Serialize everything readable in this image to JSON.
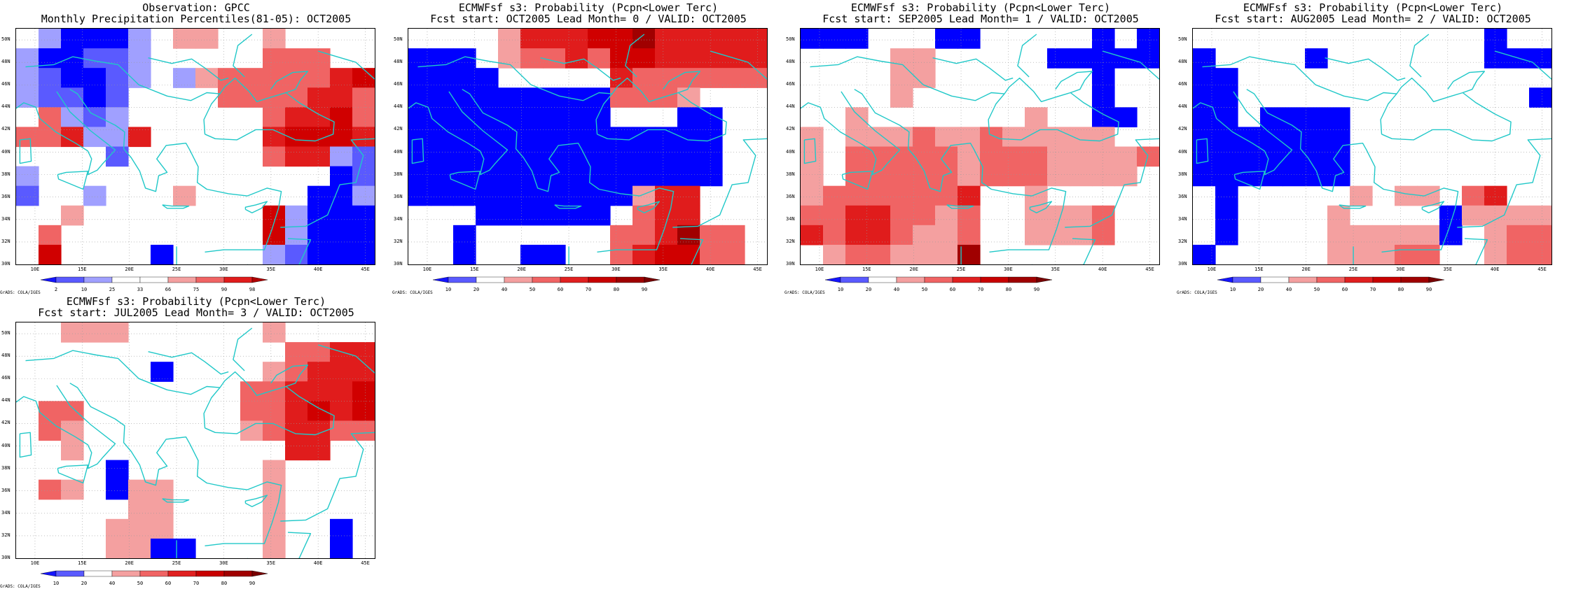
{
  "panels": [
    {
      "title1": "Observation: GPCC",
      "title2": "Monthly Precipitation Percentiles(81-05): OCT2005",
      "legend": [
        {
          "label": "2",
          "color": "#1414ff"
        },
        {
          "label": "10",
          "color": "#5a5aff"
        },
        {
          "label": "25",
          "color": "#a0a0ff"
        },
        {
          "label": "33",
          "color": "#ffffff"
        },
        {
          "label": "66",
          "color": "#ffffff"
        },
        {
          "label": "75",
          "color": "#f4a0a0"
        },
        {
          "label": "90",
          "color": "#f06464"
        },
        {
          "label": "98",
          "color": "#e01c1c"
        }
      ],
      "cells": [
        "w b3 b1 b1 b1 b3 w r1 r1 w w r1 w w w w",
        "b3 b1 b1 b2 b2 b3 w w w w w r2 r2 r2 w w",
        "b3 b2 b1 b1 b2 b3 w b3 r1 r2 r2 r2 r2 r2 r3 r4",
        "b3 b2 b2 b1 b2 w w w w r2 r2 r2 r2 r3 r3 r2",
        "w r2 b3 b2 b3 w w w w w w r2 r3 r3 r4 r2",
        "r2 r2 r3 b3 b3 r3 w w w w w r3 r4 r4 r4 r3",
        "w w w w b2 w w w w w w r2 r3 r3 b3 b2",
        "b3 w w w w w w w w w w w w w b1 b2",
        "b2 w w b3 w w w r1 w w w w w b1 b1 b3",
        "w w r1 w w w w w w w w r4 b3 b1 b1 b1",
        "w r2 w w w w w w w w w r4 b3 b1 b1 b1",
        "w r4 w w w w b1 w w w w b3 b2 b1 b1 b1"
      ],
      "colorbar": {
        "labels": [
          "2",
          "10",
          "25",
          "33",
          "66",
          "75",
          "90",
          "98"
        ],
        "colors": [
          "#1414ff",
          "#5a5aff",
          "#a0a0ff",
          "#ffffff",
          "#ffffff",
          "#f4a0a0",
          "#f06464",
          "#e01c1c",
          "#b00000"
        ]
      },
      "xticks": [
        "10E",
        "15E",
        "20E",
        "25E",
        "30E",
        "35E",
        "40E",
        "45E"
      ],
      "yticks": [
        "50N",
        "48N",
        "46N",
        "44N",
        "42N",
        "40N",
        "38N",
        "36N",
        "34N",
        "32N",
        "30N"
      ],
      "credit": "GrADS: COLA/IGES"
    },
    {
      "title1": "ECMWFsf s3: Probability (Pcpn<Lower Terc)",
      "title2": "Fcst start: OCT2005  Lead Month= 0 / VALID: OCT2005",
      "cells": [
        "w w w w r1 r3 r3 r3 r4 r4 r5 r3 r3 r3 r3 r3",
        "b1 b1 b1 w r1 r2 r2 r3 r2 r4 r4 r3 r3 r3 r3 r3",
        "b1 b1 b1 b1 w w w w w r3 r2 r2 r2 r2 r2 r2",
        "b1 b1 b1 b1 b1 b1 b1 b1 b1 r2 r2 r2 r1 w w w",
        "b1 b1 b1 b1 b1 b1 b1 b1 b1 w w w b1 b1 w w",
        "b1 b1 b1 b1 b1 b1 b1 b1 b1 b1 b1 b1 b1 b1 w w",
        "b1 b1 b1 b1 b1 b1 b1 b1 b1 b1 b1 b1 b1 b1 w w",
        "b1 b1 b1 b1 b1 b1 b1 b1 b1 b1 b1 b1 b1 b1 w w",
        "b1 b1 b1 b1 b1 b1 b1 b1 b1 b1 r1 r3 r3 w w w",
        "w w w b1 b1 b1 b1 b1 b1 w r2 r3 r3 w w w",
        "w w b1 w w w w w w r2 r2 r3 r5 r2 r2 w",
        "w w b1 w w b1 b1 w w r2 r3 r4 r4 r2 r2 w"
      ],
      "colorbar": {
        "labels": [
          "10",
          "20",
          "40",
          "50",
          "60",
          "70",
          "80",
          "90"
        ],
        "colors": [
          "#1414ff",
          "#5a5aff",
          "#ffffff",
          "#f4a0a0",
          "#f06464",
          "#e02020",
          "#c80000",
          "#a00000",
          "#780000"
        ]
      },
      "xticks": [
        "10E",
        "15E",
        "20E",
        "25E",
        "30E",
        "35E",
        "40E",
        "45E"
      ],
      "yticks": [
        "50N",
        "48N",
        "46N",
        "44N",
        "42N",
        "40N",
        "38N",
        "36N",
        "34N",
        "32N",
        "30N"
      ],
      "credit": "GrADS: COLA/IGES"
    },
    {
      "title1": "ECMWFsf s3: Probability (Pcpn<Lower Terc)",
      "title2": "Fcst start: SEP2005  Lead Month= 1 / VALID: OCT2005",
      "cells": [
        "b1 b1 b1 w w w b1 b1 w w w w w b1 w b1",
        "w w w w r1 r1 w w w w w b1 b1 b1 b1 b1",
        "w w w w r1 r1 w w w w w w w b1 w w",
        "w w w w r1 w w w w w w w w b1 w w",
        "w w r1 w w w w w w w r1 w w b1 b1 w",
        "r1 w r1 r1 r1 r2 r1 r1 r2 r1 r1 r1 r1 r1 w w",
        "r1 w r2 r2 r2 r2 r2 r1 r2 r2 r2 r1 r1 r1 r1 r2",
        "r1 w r2 r2 r2 r2 r2 r1 r2 r2 r2 r1 r1 r1 r1 w",
        "r1 r2 r2 r2 r2 r2 r2 r3 w w r1 w w w w w",
        "r2 r2 r3 r3 r2 r2 r1 r2 w w r1 r1 r1 r2 w w",
        "r3 r2 r3 r3 r2 r1 r1 r2 w w r1 r1 r1 r2 w w",
        "w r1 r2 r2 r1 r1 r1 r5 w w w w w w w w"
      ],
      "colorbar": {
        "labels": [
          "10",
          "20",
          "40",
          "50",
          "60",
          "70",
          "80",
          "90"
        ],
        "colors": [
          "#1414ff",
          "#5a5aff",
          "#ffffff",
          "#f4a0a0",
          "#f06464",
          "#e02020",
          "#c80000",
          "#a00000",
          "#780000"
        ]
      },
      "xticks": [
        "10E",
        "15E",
        "20E",
        "25E",
        "30E",
        "35E",
        "40E",
        "45E"
      ],
      "yticks": [
        "50N",
        "48N",
        "46N",
        "44N",
        "42N",
        "40N",
        "38N",
        "36N",
        "34N",
        "32N",
        "30N"
      ],
      "credit": "GrADS: COLA/IGES"
    },
    {
      "title1": "ECMWFsf s3: Probability (Pcpn<Lower Terc)",
      "title2": "Fcst start: AUG2005  Lead Month= 2 / VALID: OCT2005",
      "cells": [
        "w w w w w w w w w w w w w b1 w w",
        "b1 w w w w b1 w w w w w w w b1 b1 b1",
        "b1 b1 w w w w w w w w w w w w w w",
        "b1 b1 w w w w w w w w w w w w w b1",
        "b1 b1 w b1 b1 b1 b1 w w w w w w w w w",
        "b1 b1 b1 b1 b1 b1 b1 w w w w w w w w w",
        "b1 b1 b1 b1 b1 b1 b1 w w w w w w w w w",
        "b1 b1 b1 b1 b1 b1 b1 w w w w w w w w w",
        "w b1 w w w w w r1 w r1 r1 w r2 r3 w w",
        "w b1 w w w w r1 w w w w b1 r1 r1 r1 r1",
        "w b1 w w w w r1 r1 r1 r1 r1 b1 w r1 r2 r2",
        "b1 w w w w w r1 r1 r1 r2 r2 w w r1 r2 r2"
      ],
      "colorbar": {
        "labels": [
          "10",
          "20",
          "40",
          "50",
          "60",
          "70",
          "80",
          "90"
        ],
        "colors": [
          "#1414ff",
          "#5a5aff",
          "#ffffff",
          "#f4a0a0",
          "#f06464",
          "#e02020",
          "#c80000",
          "#a00000",
          "#780000"
        ]
      },
      "xticks": [
        "10E",
        "15E",
        "20E",
        "25E",
        "30E",
        "35E",
        "40E",
        "45E"
      ],
      "yticks": [
        "50N",
        "48N",
        "46N",
        "44N",
        "42N",
        "40N",
        "38N",
        "36N",
        "34N",
        "32N",
        "30N"
      ],
      "credit": "GrADS: COLA/IGES"
    },
    {
      "title1": "ECMWFsf s3: Probability (Pcpn<Lower Terc)",
      "title2": "Fcst start: JUL2005  Lead Month= 3 / VALID: OCT2005",
      "cells": [
        "w w r1 r1 r1 w w w w w w r1 w w w w",
        "w w w w w w w w w w w w r2 r2 r3 r3",
        "w w w w w w b1 w w w w r1 r2 r3 r3 r3",
        "w w w w w w w w w w r2 r2 r3 r3 r3 r4",
        "w r2 r2 w w w w w w w r2 r2 r3 r4 r3 r4",
        "w r2 r1 w w w w w w w r1 r2 r3 r3 r2 r2",
        "w w r1 w w w w w w w w w r3 r3 w w",
        "w w w w b1 w w w w w w r1 w w w w",
        "w r2 r1 w b1 r1 r1 w w w w r1 w w w w",
        "w w w w w r1 r1 w w w w r1 w w w w",
        "w w w w r1 r1 r1 w w w w r1 w w b1 w",
        "w w w w r1 r1 b1 b1 w w w r1 w w b1 w"
      ],
      "colorbar": {
        "labels": [
          "10",
          "20",
          "40",
          "50",
          "60",
          "70",
          "80",
          "90"
        ],
        "colors": [
          "#1414ff",
          "#5a5aff",
          "#ffffff",
          "#f4a0a0",
          "#f06464",
          "#e02020",
          "#c80000",
          "#a00000",
          "#780000"
        ]
      },
      "xticks": [
        "10E",
        "15E",
        "20E",
        "25E",
        "30E",
        "35E",
        "40E",
        "45E"
      ],
      "yticks": [
        "50N",
        "48N",
        "46N",
        "44N",
        "42N",
        "40N",
        "38N",
        "36N",
        "34N",
        "32N",
        "30N"
      ],
      "credit": "GrADS: COLA/IGES"
    }
  ],
  "cell_colors": {
    "w": "#ffffff",
    "b1": "#0000ff",
    "b2": "#5a5aff",
    "b3": "#a0a0ff",
    "r1": "#f4a0a0",
    "r2": "#f06464",
    "r3": "#e01c1c",
    "r4": "#d00000",
    "r5": "#a00000"
  },
  "coast_color": "#20c8c8",
  "grid_color": "#999999"
}
